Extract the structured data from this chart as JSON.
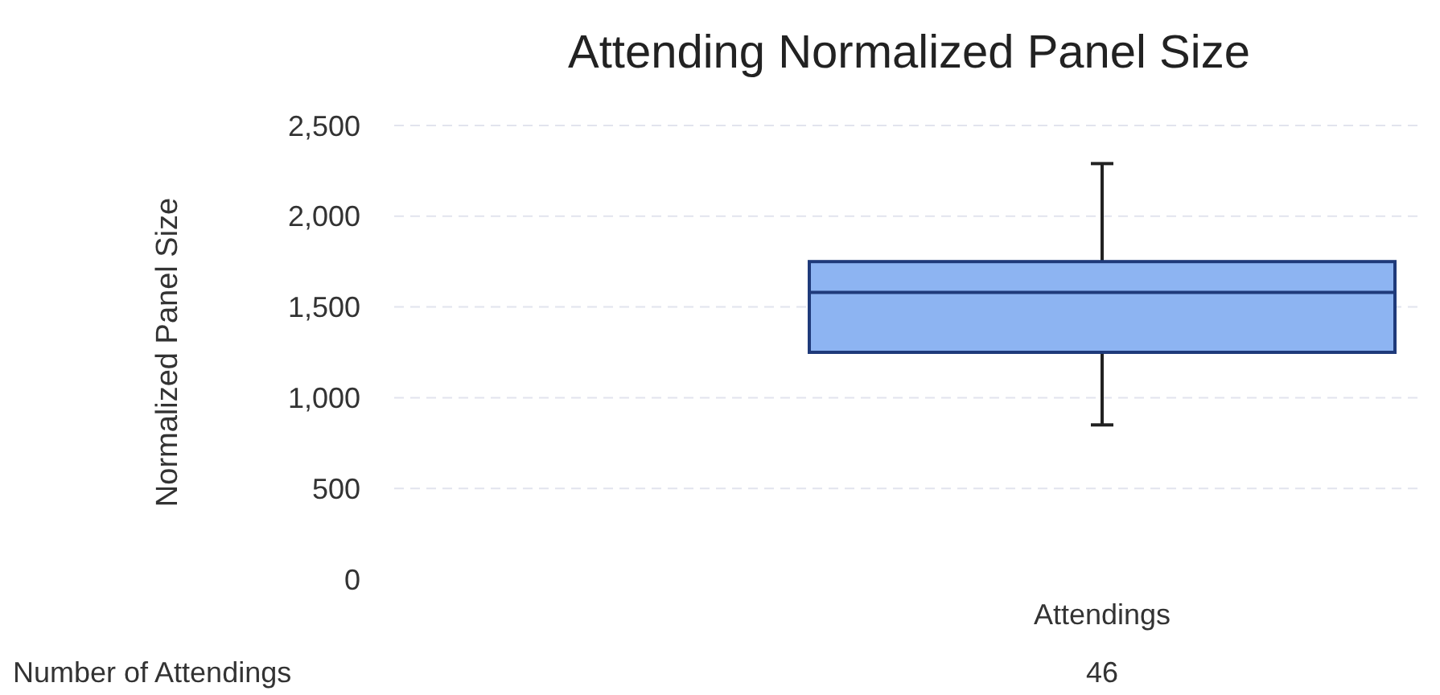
{
  "chart_data": {
    "type": "box",
    "title": "Attending Normalized Panel Size",
    "ylabel": "Normalized Panel Size",
    "categories": [
      "Attendings"
    ],
    "boxes": [
      {
        "low": 850,
        "q1": 1250,
        "median": 1580,
        "q3": 1750,
        "high": 2290
      }
    ],
    "color": "#8db4f2",
    "ylim": [
      0,
      2500
    ],
    "yticks": [
      {
        "value": 0,
        "label": "0"
      },
      {
        "value": 500,
        "label": "500"
      },
      {
        "value": 1000,
        "label": "1,000"
      },
      {
        "value": 1500,
        "label": "1,500"
      },
      {
        "value": 2000,
        "label": "2,000"
      },
      {
        "value": 2500,
        "label": "2,500"
      }
    ],
    "grid": true,
    "annotations": [
      "Number of Attendings",
      "46"
    ]
  }
}
